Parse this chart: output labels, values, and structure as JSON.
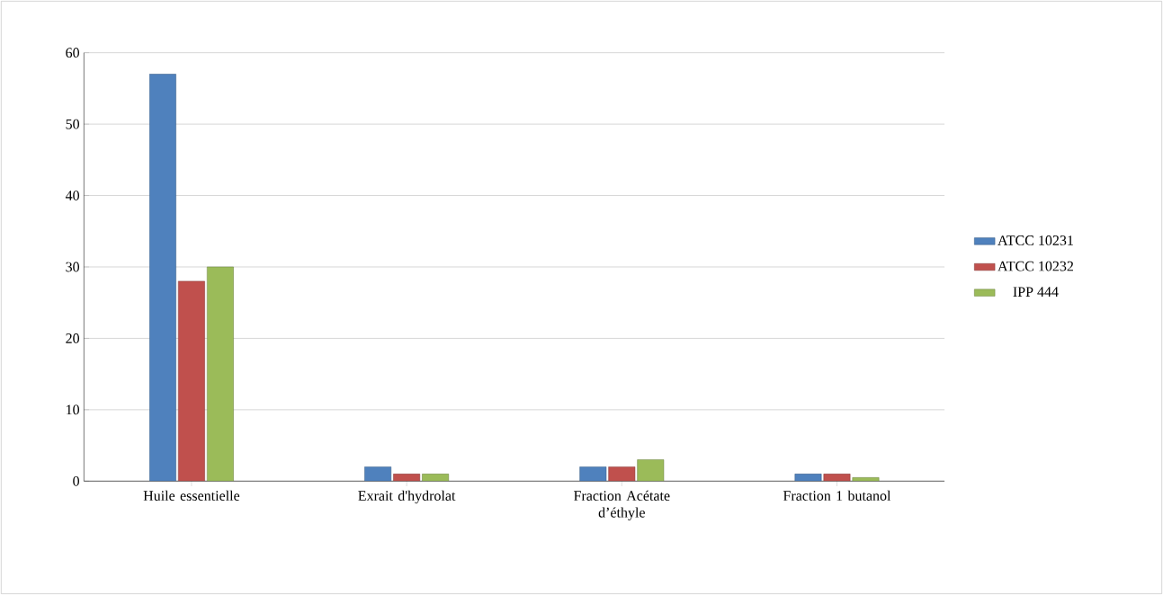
{
  "chart_data": {
    "type": "bar",
    "categories": [
      "Huile essentielle",
      "Exrait d'hydrolat",
      "Fraction Acétate d’éthyle",
      "Fraction 1 butanol"
    ],
    "series": [
      {
        "name": "ATCC 10231",
        "color": "#4f81bd",
        "values": [
          57,
          2,
          2,
          1
        ]
      },
      {
        "name": "ATCC 10232",
        "color": "#c0504d",
        "values": [
          28,
          1,
          2,
          1
        ]
      },
      {
        "name": "IPP 444",
        "color": "#9bbb59",
        "values": [
          30,
          1,
          3,
          0.5
        ]
      }
    ],
    "ylim": [
      0,
      60
    ],
    "yticks": [
      0,
      10,
      20,
      30,
      40,
      50,
      60
    ],
    "grid": "y",
    "legend": "right"
  }
}
